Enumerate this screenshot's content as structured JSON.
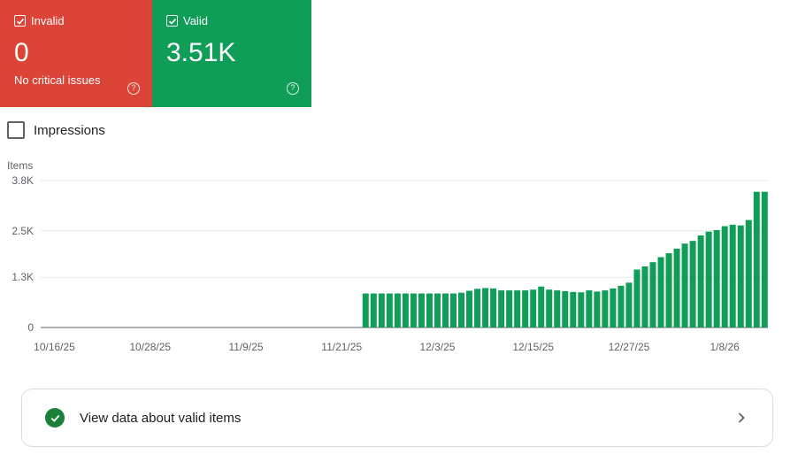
{
  "status_cards": [
    {
      "label": "Invalid",
      "value": "0",
      "subtext": "No critical issues",
      "color": "#db4437"
    },
    {
      "label": "Valid",
      "value": "3.51K",
      "subtext": "",
      "color": "#0f9d58"
    }
  ],
  "impressions": {
    "label": "Impressions",
    "checked": false
  },
  "chart_data": {
    "type": "bar",
    "ylabel": "Items",
    "y_ticks": [
      "3.8K",
      "2.5K",
      "1.3K",
      "0"
    ],
    "ylim": [
      0,
      3800
    ],
    "x_ticks": [
      "10/16/25",
      "10/28/25",
      "11/9/25",
      "11/21/25",
      "12/3/25",
      "12/15/25",
      "12/27/25",
      "1/8/26"
    ],
    "x_start": "2025-10-16",
    "grid": true,
    "color": "#0f9d58",
    "dates": [
      "2025-11-24",
      "2025-11-25",
      "2025-11-26",
      "2025-11-27",
      "2025-11-28",
      "2025-11-29",
      "2025-11-30",
      "2025-12-01",
      "2025-12-02",
      "2025-12-03",
      "2025-12-04",
      "2025-12-05",
      "2025-12-06",
      "2025-12-07",
      "2025-12-08",
      "2025-12-09",
      "2025-12-10",
      "2025-12-11",
      "2025-12-12",
      "2025-12-13",
      "2025-12-14",
      "2025-12-15",
      "2025-12-16",
      "2025-12-17",
      "2025-12-18",
      "2025-12-19",
      "2025-12-20",
      "2025-12-21",
      "2025-12-22",
      "2025-12-23",
      "2025-12-24",
      "2025-12-25",
      "2025-12-26",
      "2025-12-27",
      "2025-12-28",
      "2025-12-29",
      "2025-12-30",
      "2025-12-31",
      "2026-01-01",
      "2026-01-02",
      "2026-01-03",
      "2026-01-04",
      "2026-01-05",
      "2026-01-06",
      "2026-01-07",
      "2026-01-08",
      "2026-01-09",
      "2026-01-10",
      "2026-01-11",
      "2026-01-12",
      "2026-01-13"
    ],
    "values": [
      880,
      880,
      880,
      880,
      880,
      880,
      880,
      880,
      880,
      880,
      880,
      880,
      900,
      950,
      1000,
      1020,
      1010,
      960,
      960,
      960,
      960,
      980,
      1060,
      980,
      960,
      940,
      920,
      910,
      960,
      930,
      960,
      1010,
      1080,
      1160,
      1500,
      1580,
      1690,
      1820,
      1920,
      2040,
      2170,
      2240,
      2380,
      2480,
      2520,
      2620,
      2660,
      2640,
      2780,
      3510,
      3510
    ]
  },
  "valid_link": {
    "label": "View data about valid items"
  }
}
